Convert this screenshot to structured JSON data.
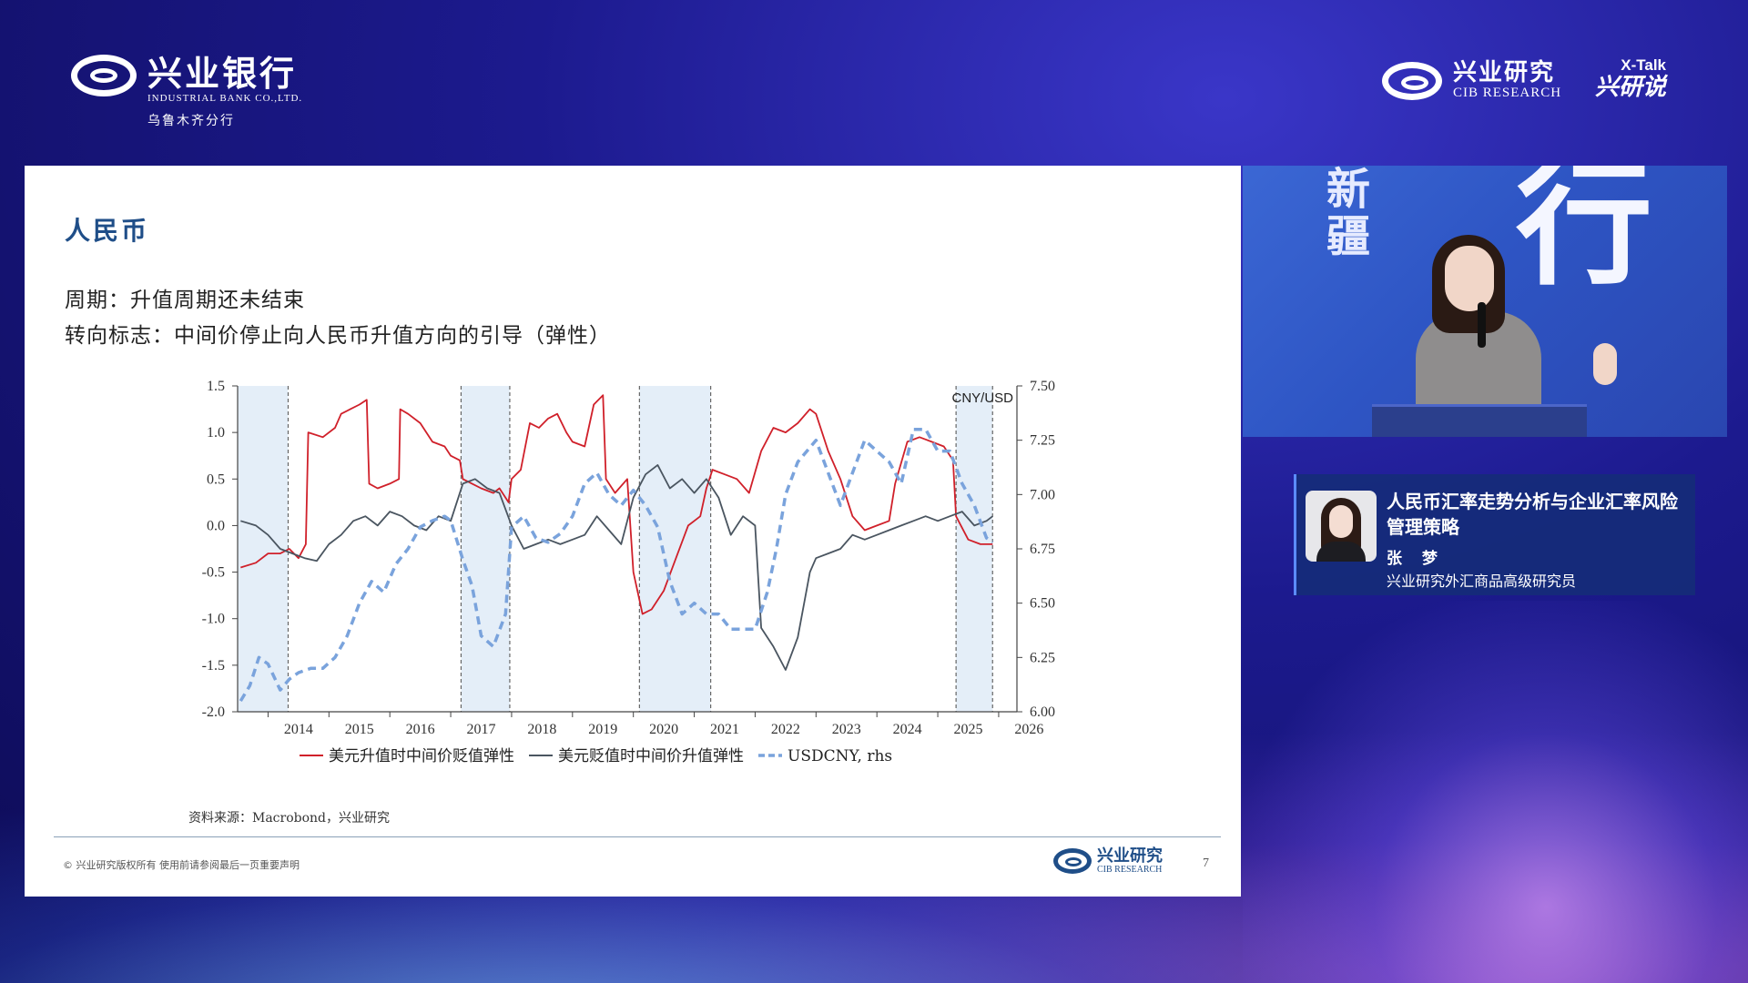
{
  "header": {
    "bank_logo_cn": "兴业银行",
    "bank_logo_en": "INDUSTRIAL BANK CO.,LTD.",
    "bank_branch": "乌鲁木齐分行",
    "research_logo_cn": "兴业研究",
    "research_logo_en": "CIB RESEARCH",
    "xtalk_top": "X-Talk",
    "xtalk_bottom": "兴研说"
  },
  "slide": {
    "title": "人民币",
    "subtitle1": "周期：升值周期还未结束",
    "subtitle2": "转向标志：中间价停止向人民币升值方向的引导（弹性）",
    "source": "资料来源：Macrobond，兴业研究",
    "footer_left": "© 兴业研究版权所有    使用前请参阅最后一页重要声明",
    "footer_logo_cn": "兴业研究",
    "footer_logo_en": "CIB RESEARCH",
    "page_number": "7"
  },
  "video": {
    "bg_vertical_text": "新疆",
    "bg_big_text": "行"
  },
  "name_card": {
    "title": "人民币汇率走势分析与企业汇率风险管理策略",
    "name": "张 梦",
    "role": "兴业研究外汇商品高级研究员"
  },
  "chart_data": {
    "type": "line",
    "title": "",
    "y_left_ticks": [
      "1.5",
      "1.0",
      "0.5",
      "0.0",
      "-0.5",
      "-1.0",
      "-1.5",
      "-2.0"
    ],
    "y_left_range": [
      -2.0,
      1.5
    ],
    "y_right_ticks": [
      "7.50",
      "7.25",
      "7.00",
      "6.75",
      "6.50",
      "6.25",
      "6.00"
    ],
    "y_right_range": [
      6.0,
      7.5
    ],
    "y_right_label": "CNY/USD",
    "x_ticks": [
      "2014",
      "2015",
      "2016",
      "2017",
      "2018",
      "2019",
      "2020",
      "2021",
      "2022",
      "2023",
      "2024",
      "2025",
      "2026"
    ],
    "x_range": [
      2013.5,
      2026.3
    ],
    "shaded_periods": [
      [
        2013.5,
        2014.33
      ],
      [
        2017.17,
        2017.97
      ],
      [
        2020.1,
        2021.27
      ],
      [
        2025.3,
        2025.9
      ]
    ],
    "grid": false,
    "legend_position": "bottom",
    "series": [
      {
        "name": "美元升值时中间价贬值弹性",
        "color": "#d0202a",
        "style": "solid",
        "axis": "left",
        "x": [
          2013.55,
          2013.8,
          2014.0,
          2014.2,
          2014.35,
          2014.5,
          2014.62,
          2014.66,
          2014.9,
          2015.1,
          2015.2,
          2015.35,
          2015.5,
          2015.62,
          2015.66,
          2015.8,
          2016.0,
          2016.15,
          2016.17,
          2016.3,
          2016.5,
          2016.7,
          2016.9,
          2017.0,
          2017.15,
          2017.2,
          2017.35,
          2017.5,
          2017.7,
          2017.8,
          2017.95,
          2018.0,
          2018.15,
          2018.3,
          2018.45,
          2018.6,
          2018.75,
          2018.9,
          2019.0,
          2019.2,
          2019.35,
          2019.5,
          2019.55,
          2019.7,
          2019.9,
          2020.0,
          2020.15,
          2020.3,
          2020.5,
          2020.7,
          2020.9,
          2021.1,
          2021.2,
          2021.3,
          2021.5,
          2021.7,
          2021.9,
          2022.1,
          2022.3,
          2022.5,
          2022.7,
          2022.9,
          2023.0,
          2023.2,
          2023.4,
          2023.6,
          2023.8,
          2024.0,
          2024.2,
          2024.3,
          2024.5,
          2024.7,
          2024.9,
          2025.1,
          2025.25,
          2025.3,
          2025.5,
          2025.7,
          2025.9
        ],
        "y": [
          -0.45,
          -0.4,
          -0.3,
          -0.3,
          -0.25,
          -0.35,
          -0.2,
          1.0,
          0.95,
          1.05,
          1.2,
          1.25,
          1.3,
          1.35,
          0.45,
          0.4,
          0.45,
          0.5,
          1.25,
          1.2,
          1.1,
          0.9,
          0.85,
          0.75,
          0.7,
          0.5,
          0.45,
          0.4,
          0.35,
          0.4,
          0.25,
          0.5,
          0.6,
          1.1,
          1.05,
          1.15,
          1.2,
          1.0,
          0.9,
          0.85,
          1.3,
          1.4,
          0.5,
          0.35,
          0.5,
          -0.5,
          -0.95,
          -0.9,
          -0.7,
          -0.35,
          0.0,
          0.1,
          0.4,
          0.6,
          0.55,
          0.5,
          0.35,
          0.8,
          1.05,
          1.0,
          1.1,
          1.25,
          1.2,
          0.8,
          0.5,
          0.1,
          -0.05,
          0.0,
          0.05,
          0.45,
          0.9,
          0.95,
          0.9,
          0.85,
          0.7,
          0.1,
          -0.15,
          -0.2,
          -0.2
        ]
      },
      {
        "name": "美元贬值时中间价升值弹性",
        "color": "#4a5560",
        "style": "solid",
        "axis": "left",
        "x": [
          2013.55,
          2013.8,
          2014.0,
          2014.2,
          2014.4,
          2014.6,
          2014.8,
          2015.0,
          2015.2,
          2015.4,
          2015.6,
          2015.8,
          2016.0,
          2016.2,
          2016.4,
          2016.6,
          2016.8,
          2017.0,
          2017.2,
          2017.4,
          2017.6,
          2017.8,
          2018.0,
          2018.2,
          2018.4,
          2018.6,
          2018.8,
          2019.0,
          2019.2,
          2019.4,
          2019.6,
          2019.8,
          2020.0,
          2020.2,
          2020.4,
          2020.6,
          2020.8,
          2021.0,
          2021.2,
          2021.4,
          2021.6,
          2021.8,
          2022.0,
          2022.1,
          2022.3,
          2022.5,
          2022.7,
          2022.9,
          2023.0,
          2023.2,
          2023.4,
          2023.6,
          2023.8,
          2024.0,
          2024.2,
          2024.4,
          2024.6,
          2024.8,
          2025.0,
          2025.2,
          2025.4,
          2025.6,
          2025.8,
          2025.9
        ],
        "y": [
          0.05,
          0.0,
          -0.1,
          -0.25,
          -0.3,
          -0.35,
          -0.38,
          -0.2,
          -0.1,
          0.05,
          0.1,
          0.0,
          0.15,
          0.1,
          0.0,
          -0.05,
          0.1,
          0.05,
          0.45,
          0.5,
          0.4,
          0.35,
          0.0,
          -0.25,
          -0.2,
          -0.15,
          -0.2,
          -0.15,
          -0.1,
          0.1,
          -0.05,
          -0.2,
          0.3,
          0.55,
          0.65,
          0.4,
          0.5,
          0.35,
          0.5,
          0.3,
          -0.1,
          0.1,
          0.0,
          -1.1,
          -1.3,
          -1.55,
          -1.2,
          -0.5,
          -0.35,
          -0.3,
          -0.25,
          -0.1,
          -0.15,
          -0.1,
          -0.05,
          0.0,
          0.05,
          0.1,
          0.05,
          0.1,
          0.15,
          0.0,
          0.05,
          0.1
        ]
      },
      {
        "name": "USDCNY, rhs",
        "color": "#7aa3dc",
        "style": "dashed",
        "axis": "right",
        "x": [
          2013.55,
          2013.7,
          2013.85,
          2014.0,
          2014.2,
          2014.35,
          2014.5,
          2014.7,
          2014.9,
          2015.1,
          2015.3,
          2015.5,
          2015.7,
          2015.9,
          2016.1,
          2016.3,
          2016.5,
          2016.7,
          2016.9,
          2017.0,
          2017.2,
          2017.35,
          2017.5,
          2017.7,
          2017.9,
          2018.0,
          2018.2,
          2018.4,
          2018.6,
          2018.8,
          2019.0,
          2019.2,
          2019.4,
          2019.6,
          2019.8,
          2020.0,
          2020.2,
          2020.4,
          2020.6,
          2020.8,
          2021.0,
          2021.2,
          2021.4,
          2021.6,
          2021.8,
          2022.0,
          2022.2,
          2022.35,
          2022.5,
          2022.7,
          2022.85,
          2023.0,
          2023.2,
          2023.4,
          2023.6,
          2023.8,
          2024.0,
          2024.2,
          2024.4,
          2024.6,
          2024.8,
          2025.0,
          2025.2,
          2025.4,
          2025.6,
          2025.8,
          2025.9
        ],
        "y": [
          6.05,
          6.12,
          6.25,
          6.22,
          6.1,
          6.15,
          6.18,
          6.2,
          6.2,
          6.25,
          6.35,
          6.5,
          6.6,
          6.55,
          6.68,
          6.75,
          6.85,
          6.88,
          6.9,
          6.88,
          6.7,
          6.58,
          6.35,
          6.3,
          6.45,
          6.85,
          6.9,
          6.8,
          6.78,
          6.82,
          6.9,
          7.05,
          7.1,
          7.0,
          6.95,
          7.02,
          6.95,
          6.85,
          6.6,
          6.45,
          6.5,
          6.45,
          6.45,
          6.38,
          6.38,
          6.38,
          6.55,
          6.75,
          7.0,
          7.15,
          7.2,
          7.25,
          7.1,
          6.95,
          7.1,
          7.25,
          7.2,
          7.15,
          7.05,
          7.3,
          7.3,
          7.2,
          7.2,
          7.05,
          6.95,
          6.8,
          6.78
        ]
      }
    ]
  }
}
